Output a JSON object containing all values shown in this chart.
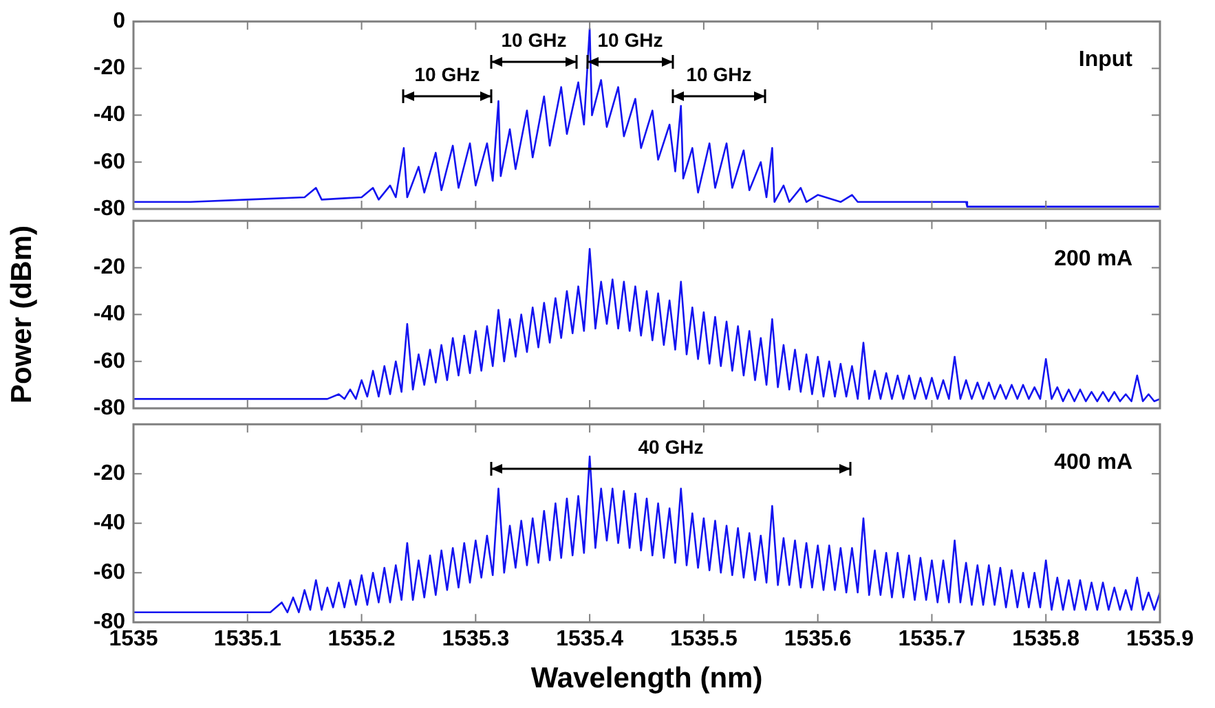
{
  "chart_data": [
    {
      "type": "line",
      "xlim": [
        1535,
        1535.9
      ],
      "xticks": [
        1535,
        1535.1,
        1535.2,
        1535.3,
        1535.4,
        1535.5,
        1535.6,
        1535.7,
        1535.8,
        1535.9
      ],
      "ylim": [
        -80,
        0
      ],
      "yticks": [
        0,
        -20,
        -40,
        -60,
        -80
      ],
      "tick_labels": "y",
      "annotations": [
        "Input",
        "10 GHz",
        "10 GHz",
        "10 GHz",
        "10 GHz"
      ],
      "series": [
        {
          "color": "#1414f0",
          "x": [
            1535,
            1535.05,
            1535.1,
            1535.15,
            1535.16,
            1535.165,
            1535.2,
            1535.21,
            1535.215,
            1535.225,
            1535.23,
            1535.237,
            1535.24,
            1535.25,
            1535.255,
            1535.265,
            1535.27,
            1535.28,
            1535.285,
            1535.295,
            1535.3,
            1535.31,
            1535.315,
            1535.32,
            1535.322,
            1535.33,
            1535.335,
            1535.345,
            1535.35,
            1535.36,
            1535.365,
            1535.375,
            1535.38,
            1535.39,
            1535.395,
            1535.4,
            1535.402,
            1535.41,
            1535.415,
            1535.425,
            1535.43,
            1535.44,
            1535.445,
            1535.455,
            1535.46,
            1535.47,
            1535.475,
            1535.48,
            1535.482,
            1535.49,
            1535.495,
            1535.505,
            1535.51,
            1535.52,
            1535.525,
            1535.535,
            1535.54,
            1535.55,
            1535.555,
            1535.56,
            1535.562,
            1535.57,
            1535.575,
            1535.585,
            1535.59,
            1535.6,
            1535.62,
            1535.63,
            1535.635,
            1535.7,
            1535.73,
            1535.731,
            1535.9
          ],
          "values": [
            -77,
            -77,
            -76,
            -75,
            -71,
            -76,
            -75,
            -71,
            -76,
            -70,
            -75,
            -54,
            -75,
            -62,
            -73,
            -56,
            -72,
            -53,
            -71,
            -52,
            -70,
            -52,
            -68,
            -34,
            -66,
            -46,
            -63,
            -38,
            -58,
            -32,
            -53,
            -28,
            -48,
            -26,
            -44,
            -3,
            -40,
            -25,
            -45,
            -28,
            -49,
            -33,
            -54,
            -38,
            -59,
            -44,
            -64,
            -36,
            -67,
            -54,
            -73,
            -52,
            -71,
            -52,
            -71,
            -55,
            -72,
            -60,
            -75,
            -54,
            -77,
            -70,
            -77,
            -71,
            -77,
            -74,
            -77,
            -74,
            -77,
            -77,
            -77,
            -79,
            -79
          ]
        }
      ]
    },
    {
      "type": "line",
      "ylabel": "Power (dBm)",
      "xlim": [
        1535,
        1535.9
      ],
      "xticks": [
        1535,
        1535.1,
        1535.2,
        1535.3,
        1535.4,
        1535.5,
        1535.6,
        1535.7,
        1535.8,
        1535.9
      ],
      "ylim": [
        -80,
        0
      ],
      "yticks": [
        -20,
        -40,
        -60,
        -80
      ],
      "tick_labels": "y",
      "annotations": [
        "200 mA"
      ],
      "series": [
        {
          "color": "#1414f0",
          "x": [
            1535,
            1535.1,
            1535.17,
            1535.18,
            1535.185,
            1535.19,
            1535.195,
            1535.2,
            1535.205,
            1535.21,
            1535.215,
            1535.22,
            1535.225,
            1535.23,
            1535.235,
            1535.24,
            1535.245,
            1535.25,
            1535.255,
            1535.26,
            1535.265,
            1535.27,
            1535.275,
            1535.28,
            1535.285,
            1535.29,
            1535.295,
            1535.3,
            1535.305,
            1535.31,
            1535.315,
            1535.32,
            1535.325,
            1535.33,
            1535.335,
            1535.34,
            1535.345,
            1535.35,
            1535.355,
            1535.36,
            1535.365,
            1535.37,
            1535.375,
            1535.38,
            1535.385,
            1535.39,
            1535.395,
            1535.4,
            1535.405,
            1535.41,
            1535.415,
            1535.42,
            1535.425,
            1535.43,
            1535.435,
            1535.44,
            1535.445,
            1535.45,
            1535.455,
            1535.46,
            1535.465,
            1535.47,
            1535.475,
            1535.48,
            1535.485,
            1535.49,
            1535.495,
            1535.5,
            1535.505,
            1535.51,
            1535.515,
            1535.52,
            1535.525,
            1535.53,
            1535.535,
            1535.54,
            1535.545,
            1535.55,
            1535.555,
            1535.56,
            1535.565,
            1535.57,
            1535.575,
            1535.58,
            1535.585,
            1535.59,
            1535.595,
            1535.6,
            1535.605,
            1535.61,
            1535.615,
            1535.62,
            1535.625,
            1535.63,
            1535.635,
            1535.64,
            1535.645,
            1535.65,
            1535.655,
            1535.66,
            1535.665,
            1535.67,
            1535.675,
            1535.68,
            1535.685,
            1535.69,
            1535.695,
            1535.7,
            1535.705,
            1535.71,
            1535.715,
            1535.72,
            1535.725,
            1535.73,
            1535.735,
            1535.74,
            1535.745,
            1535.75,
            1535.755,
            1535.76,
            1535.765,
            1535.77,
            1535.775,
            1535.78,
            1535.785,
            1535.79,
            1535.795,
            1535.8,
            1535.805,
            1535.81,
            1535.815,
            1535.82,
            1535.825,
            1535.83,
            1535.835,
            1535.84,
            1535.845,
            1535.85,
            1535.855,
            1535.86,
            1535.865,
            1535.87,
            1535.875,
            1535.88,
            1535.885,
            1535.89,
            1535.895,
            1535.9
          ],
          "values": [
            -76,
            -76,
            -76,
            -74,
            -76,
            -72,
            -76,
            -68,
            -75,
            -64,
            -75,
            -62,
            -74,
            -60,
            -73,
            -44,
            -72,
            -57,
            -70,
            -55,
            -69,
            -53,
            -68,
            -50,
            -66,
            -49,
            -65,
            -47,
            -64,
            -45,
            -62,
            -38,
            -60,
            -42,
            -58,
            -40,
            -56,
            -37,
            -54,
            -35,
            -52,
            -33,
            -50,
            -30,
            -48,
            -28,
            -47,
            -12,
            -46,
            -26,
            -44,
            -25,
            -46,
            -26,
            -47,
            -28,
            -49,
            -30,
            -51,
            -31,
            -53,
            -34,
            -55,
            -26,
            -57,
            -37,
            -59,
            -39,
            -61,
            -41,
            -62,
            -43,
            -64,
            -45,
            -66,
            -47,
            -68,
            -50,
            -70,
            -42,
            -71,
            -53,
            -72,
            -55,
            -73,
            -57,
            -74,
            -58,
            -75,
            -60,
            -75,
            -61,
            -75,
            -62,
            -76,
            -52,
            -76,
            -64,
            -76,
            -65,
            -76,
            -66,
            -76,
            -66,
            -76,
            -67,
            -76,
            -67,
            -76,
            -68,
            -76,
            -58,
            -76,
            -68,
            -76,
            -69,
            -76,
            -69,
            -76,
            -70,
            -76,
            -70,
            -76,
            -70,
            -76,
            -71,
            -76,
            -59,
            -76,
            -71,
            -77,
            -72,
            -77,
            -72,
            -77,
            -73,
            -77,
            -73,
            -77,
            -73,
            -77,
            -74,
            -77,
            -66,
            -77,
            -74,
            -77,
            -76
          ]
        }
      ]
    },
    {
      "type": "line",
      "xlabel": "Wavelength (nm)",
      "xlim": [
        1535,
        1535.9
      ],
      "xticks": [
        1535,
        1535.1,
        1535.2,
        1535.3,
        1535.4,
        1535.5,
        1535.6,
        1535.7,
        1535.8,
        1535.9
      ],
      "ylim": [
        -80,
        0
      ],
      "yticks": [
        -20,
        -40,
        -60,
        -80
      ],
      "annotations": [
        "400 mA",
        "40 GHz"
      ],
      "series": [
        {
          "color": "#1414f0",
          "x": [
            1535,
            1535.1,
            1535.12,
            1535.13,
            1535.135,
            1535.14,
            1535.145,
            1535.15,
            1535.155,
            1535.16,
            1535.165,
            1535.17,
            1535.175,
            1535.18,
            1535.185,
            1535.19,
            1535.195,
            1535.2,
            1535.205,
            1535.21,
            1535.215,
            1535.22,
            1535.225,
            1535.23,
            1535.235,
            1535.24,
            1535.245,
            1535.25,
            1535.255,
            1535.26,
            1535.265,
            1535.27,
            1535.275,
            1535.28,
            1535.285,
            1535.29,
            1535.295,
            1535.3,
            1535.305,
            1535.31,
            1535.315,
            1535.32,
            1535.325,
            1535.33,
            1535.335,
            1535.34,
            1535.345,
            1535.35,
            1535.355,
            1535.36,
            1535.365,
            1535.37,
            1535.375,
            1535.38,
            1535.385,
            1535.39,
            1535.395,
            1535.4,
            1535.405,
            1535.41,
            1535.415,
            1535.42,
            1535.425,
            1535.43,
            1535.435,
            1535.44,
            1535.445,
            1535.45,
            1535.455,
            1535.46,
            1535.465,
            1535.47,
            1535.475,
            1535.48,
            1535.485,
            1535.49,
            1535.495,
            1535.5,
            1535.505,
            1535.51,
            1535.515,
            1535.52,
            1535.525,
            1535.53,
            1535.535,
            1535.54,
            1535.545,
            1535.55,
            1535.555,
            1535.56,
            1535.565,
            1535.57,
            1535.575,
            1535.58,
            1535.585,
            1535.59,
            1535.595,
            1535.6,
            1535.605,
            1535.61,
            1535.615,
            1535.62,
            1535.625,
            1535.63,
            1535.635,
            1535.64,
            1535.645,
            1535.65,
            1535.655,
            1535.66,
            1535.665,
            1535.67,
            1535.675,
            1535.68,
            1535.685,
            1535.69,
            1535.695,
            1535.7,
            1535.705,
            1535.71,
            1535.715,
            1535.72,
            1535.725,
            1535.73,
            1535.735,
            1535.74,
            1535.745,
            1535.75,
            1535.755,
            1535.76,
            1535.765,
            1535.77,
            1535.775,
            1535.78,
            1535.785,
            1535.79,
            1535.795,
            1535.8,
            1535.805,
            1535.81,
            1535.815,
            1535.82,
            1535.825,
            1535.83,
            1535.835,
            1535.84,
            1535.845,
            1535.85,
            1535.855,
            1535.86,
            1535.865,
            1535.87,
            1535.875,
            1535.88,
            1535.885,
            1535.89,
            1535.895,
            1535.9
          ],
          "values": [
            -76,
            -76,
            -76,
            -72,
            -76,
            -70,
            -76,
            -67,
            -75,
            -63,
            -75,
            -66,
            -74,
            -64,
            -74,
            -63,
            -73,
            -61,
            -73,
            -60,
            -72,
            -58,
            -72,
            -57,
            -71,
            -48,
            -71,
            -55,
            -70,
            -53,
            -69,
            -51,
            -67,
            -50,
            -66,
            -48,
            -64,
            -47,
            -62,
            -45,
            -61,
            -26,
            -60,
            -41,
            -58,
            -39,
            -57,
            -38,
            -56,
            -35,
            -55,
            -32,
            -54,
            -30,
            -53,
            -29,
            -52,
            -13,
            -50,
            -26,
            -47,
            -26,
            -48,
            -27,
            -50,
            -28,
            -51,
            -30,
            -53,
            -32,
            -54,
            -34,
            -56,
            -26,
            -57,
            -36,
            -58,
            -38,
            -59,
            -39,
            -60,
            -41,
            -61,
            -42,
            -62,
            -44,
            -63,
            -45,
            -64,
            -33,
            -65,
            -46,
            -65,
            -47,
            -66,
            -48,
            -66,
            -49,
            -67,
            -49,
            -67,
            -50,
            -68,
            -50,
            -68,
            -38,
            -69,
            -51,
            -69,
            -52,
            -70,
            -52,
            -70,
            -53,
            -71,
            -54,
            -71,
            -55,
            -72,
            -55,
            -72,
            -47,
            -72,
            -56,
            -73,
            -57,
            -73,
            -57,
            -73,
            -58,
            -74,
            -59,
            -74,
            -60,
            -74,
            -60,
            -74,
            -55,
            -75,
            -62,
            -75,
            -63,
            -75,
            -63,
            -75,
            -64,
            -75,
            -64,
            -75,
            -66,
            -75,
            -67,
            -75,
            -62,
            -75,
            -68,
            -75,
            -68
          ]
        }
      ]
    }
  ]
}
